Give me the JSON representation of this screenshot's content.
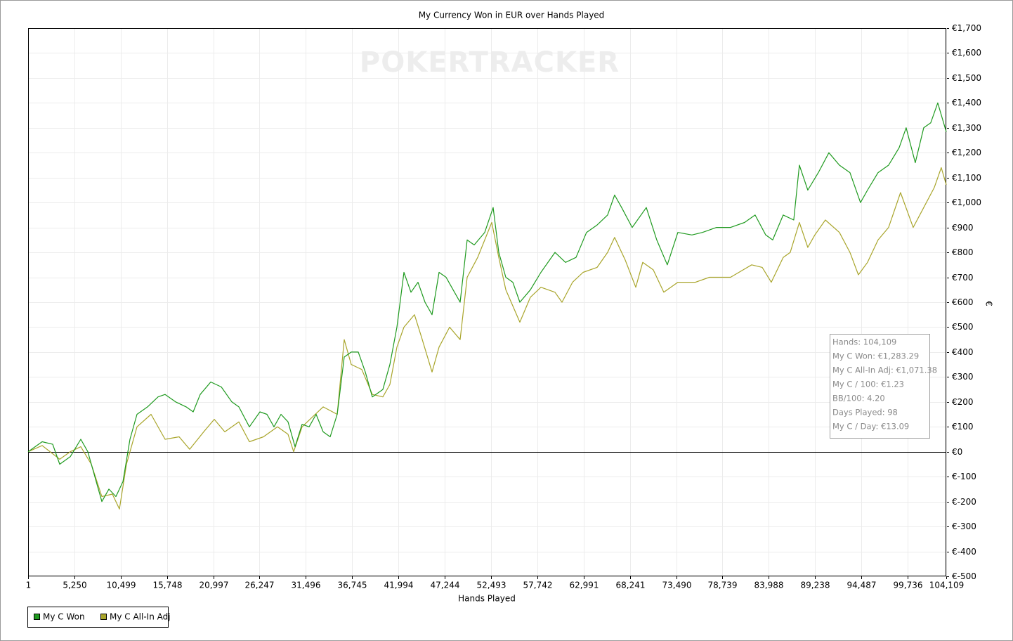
{
  "chart_data": {
    "type": "line",
    "title": "My Currency Won in EUR over Hands Played",
    "watermark": "POKERTRACKER",
    "x_label": "Hands Played",
    "y_label": "€",
    "grid": true,
    "zero_line": true,
    "legend_position": "bottom-left",
    "xlim": [
      1,
      104109
    ],
    "ylim": [
      -500,
      1700
    ],
    "xticks": [
      1,
      {
        "value": 5250,
        "label": "5,250"
      },
      {
        "value": 10499,
        "label": "10,499"
      },
      {
        "value": 15748,
        "label": "15,748"
      },
      {
        "value": 20997,
        "label": "20,997"
      },
      {
        "value": 26247,
        "label": "26,247"
      },
      {
        "value": 31496,
        "label": "31,496"
      },
      {
        "value": 36745,
        "label": "36,745"
      },
      {
        "value": 41994,
        "label": "41,994"
      },
      {
        "value": 47244,
        "label": "47,244"
      },
      {
        "value": 52493,
        "label": "52,493"
      },
      {
        "value": 57742,
        "label": "57,742"
      },
      {
        "value": 62991,
        "label": "62,991"
      },
      {
        "value": 68241,
        "label": "68,241"
      },
      {
        "value": 73490,
        "label": "73,490"
      },
      {
        "value": 78739,
        "label": "78,739"
      },
      {
        "value": 83988,
        "label": "83,988"
      },
      {
        "value": 89238,
        "label": "89,238"
      },
      {
        "value": 94487,
        "label": "94,487"
      },
      {
        "value": 99736,
        "label": "99,736"
      },
      {
        "value": 104109,
        "label": "104,109"
      }
    ],
    "yticks": [
      {
        "value": -500,
        "label": "€-500"
      },
      {
        "value": -400,
        "label": "€-400"
      },
      {
        "value": -300,
        "label": "€-300"
      },
      {
        "value": -200,
        "label": "€-200"
      },
      {
        "value": -100,
        "label": "€-100"
      },
      {
        "value": 0,
        "label": "€0"
      },
      {
        "value": 100,
        "label": "€100"
      },
      {
        "value": 200,
        "label": "€200"
      },
      {
        "value": 300,
        "label": "€300"
      },
      {
        "value": 400,
        "label": "€400"
      },
      {
        "value": 500,
        "label": "€500"
      },
      {
        "value": 600,
        "label": "€600"
      },
      {
        "value": 700,
        "label": "€700"
      },
      {
        "value": 800,
        "label": "€800"
      },
      {
        "value": 900,
        "label": "€900"
      },
      {
        "value": 1000,
        "label": "€1,000"
      },
      {
        "value": 1100,
        "label": "€1,100"
      },
      {
        "value": 1200,
        "label": "€1,200"
      },
      {
        "value": 1300,
        "label": "€1,300"
      },
      {
        "value": 1400,
        "label": "€1,400"
      },
      {
        "value": 1500,
        "label": "€1,500"
      },
      {
        "value": 1600,
        "label": "€1,600"
      },
      {
        "value": 1700,
        "label": "€1,700"
      }
    ],
    "series": [
      {
        "name": "My C Won",
        "color": "#1f9a1f",
        "x": [
          1,
          1594,
          2789,
          3585,
          4780,
          5975,
          6771,
          7568,
          8364,
          9161,
          9957,
          10754,
          11550,
          12347,
          13541,
          14736,
          15532,
          16727,
          17922,
          18718,
          19515,
          20710,
          21904,
          23099,
          23895,
          25090,
          26285,
          27081,
          27878,
          28674,
          29471,
          30267,
          31064,
          31860,
          32657,
          33454,
          34250,
          35047,
          35843,
          36640,
          37436,
          38233,
          39029,
          40224,
          41019,
          41817,
          42613,
          43410,
          44206,
          45003,
          45799,
          46596,
          47393,
          48189,
          48986,
          49782,
          50579,
          51773,
          52729,
          53366,
          54163,
          54959,
          55756,
          56951,
          58145,
          59738,
          60933,
          62128,
          63322,
          64517,
          65711,
          66508,
          67304,
          68499,
          70093,
          71287,
          72482,
          73677,
          75270,
          76465,
          78058,
          79651,
          81244,
          82439,
          83634,
          84430,
          85625,
          86819,
          87457,
          88412,
          89607,
          90802,
          91996,
          93191,
          94386,
          95182,
          96377,
          97572,
          98767,
          99563,
          100598,
          101554,
          102351,
          103147,
          104109
        ],
        "values": [
          0,
          40,
          30,
          -50,
          -20,
          50,
          0,
          -100,
          -200,
          -150,
          -180,
          -120,
          50,
          150,
          180,
          220,
          230,
          200,
          180,
          160,
          230,
          280,
          260,
          200,
          180,
          100,
          160,
          150,
          100,
          150,
          120,
          20,
          110,
          100,
          150,
          80,
          60,
          150,
          380,
          400,
          400,
          320,
          220,
          250,
          350,
          500,
          720,
          640,
          680,
          600,
          550,
          720,
          700,
          650,
          600,
          850,
          830,
          880,
          980,
          800,
          700,
          680,
          600,
          650,
          720,
          800,
          760,
          780,
          880,
          910,
          950,
          1030,
          980,
          900,
          980,
          850,
          750,
          880,
          870,
          880,
          900,
          900,
          920,
          950,
          870,
          850,
          950,
          930,
          1150,
          1050,
          1120,
          1200,
          1150,
          1120,
          1000,
          1050,
          1120,
          1150,
          1220,
          1300,
          1160,
          1300,
          1320,
          1400,
          1283.29
        ]
      },
      {
        "name": "My C All-In Adj",
        "color": "#a9a52b",
        "x": [
          1,
          1594,
          3585,
          4780,
          5975,
          7170,
          8364,
          9559,
          10355,
          11152,
          12347,
          13940,
          15532,
          17126,
          18320,
          19913,
          21108,
          22303,
          23895,
          25090,
          26683,
          28276,
          29471,
          30108,
          31064,
          32258,
          33454,
          35047,
          35843,
          36640,
          37835,
          39029,
          40224,
          41019,
          41817,
          42613,
          43808,
          44605,
          45799,
          46596,
          47791,
          48986,
          49782,
          50977,
          52570,
          53366,
          54163,
          55756,
          56951,
          58145,
          59738,
          60535,
          61730,
          62924,
          64517,
          65711,
          66508,
          67703,
          68898,
          69694,
          70889,
          72084,
          73677,
          75668,
          77261,
          79651,
          82041,
          83236,
          84271,
          85625,
          86421,
          87457,
          88412,
          89209,
          90404,
          91996,
          93191,
          94147,
          95182,
          96377,
          97572,
          98926,
          100360,
          101554,
          102749,
          103546,
          104109
        ],
        "values": [
          0,
          25,
          -30,
          0,
          20,
          -50,
          -180,
          -170,
          -230,
          -50,
          100,
          150,
          50,
          60,
          10,
          80,
          130,
          80,
          120,
          40,
          60,
          100,
          70,
          0,
          100,
          140,
          180,
          150,
          450,
          350,
          330,
          230,
          220,
          270,
          420,
          500,
          550,
          460,
          320,
          420,
          500,
          450,
          700,
          780,
          920,
          780,
          650,
          520,
          620,
          660,
          640,
          600,
          680,
          720,
          740,
          800,
          860,
          770,
          660,
          760,
          730,
          640,
          680,
          680,
          700,
          700,
          750,
          740,
          680,
          780,
          800,
          920,
          820,
          870,
          930,
          880,
          800,
          710,
          760,
          850,
          900,
          1040,
          900,
          980,
          1060,
          1140,
          1071.38
        ]
      }
    ],
    "tooltip": [
      "Hands: 104,109",
      "My C Won: €1,283.29",
      "My C All-In Adj: €1,071.38",
      "My C / 100: €1.23",
      "BB/100: 4.20",
      "Days Played: 98",
      "My C / Day: €13.09"
    ]
  }
}
